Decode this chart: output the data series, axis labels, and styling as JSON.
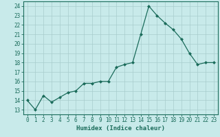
{
  "x": [
    0,
    1,
    2,
    3,
    4,
    5,
    6,
    7,
    8,
    9,
    10,
    11,
    12,
    13,
    14,
    15,
    16,
    17,
    18,
    19,
    20,
    21,
    22,
    23
  ],
  "y": [
    14,
    13,
    14.5,
    13.8,
    14.3,
    14.8,
    15.0,
    15.8,
    15.8,
    16.0,
    16.0,
    17.5,
    17.8,
    18.0,
    21.0,
    24.0,
    23.0,
    22.2,
    21.5,
    20.5,
    19.0,
    17.8,
    18.0,
    18.0
  ],
  "line_color": "#1a6b5a",
  "marker_color": "#1a6b5a",
  "bg_color": "#c8eaea",
  "grid_color": "#a8cccc",
  "xlabel": "Humidex (Indice chaleur)",
  "xlim": [
    -0.5,
    23.5
  ],
  "ylim": [
    12.5,
    24.5
  ],
  "yticks": [
    13,
    14,
    15,
    16,
    17,
    18,
    19,
    20,
    21,
    22,
    23,
    24
  ],
  "xticks": [
    0,
    1,
    2,
    3,
    4,
    5,
    6,
    7,
    8,
    9,
    10,
    11,
    12,
    13,
    14,
    15,
    16,
    17,
    18,
    19,
    20,
    21,
    22,
    23
  ],
  "tick_fontsize": 5.5,
  "label_fontsize": 6.5
}
